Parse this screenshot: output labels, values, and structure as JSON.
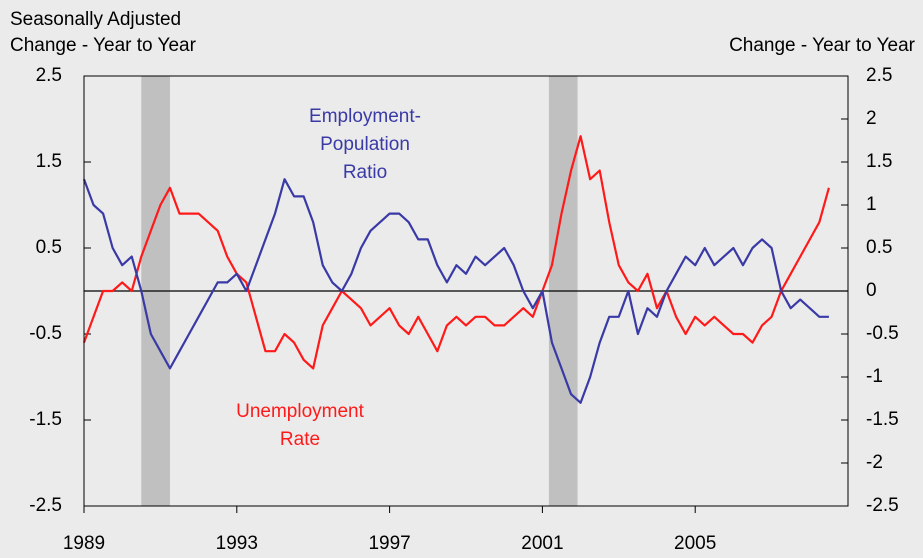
{
  "chart_data": {
    "type": "line",
    "left_axis_title": [
      "Seasonally Adjusted",
      "Change - Year to Year"
    ],
    "right_axis_title": "Change - Year to Year",
    "x": [
      1989,
      1989.25,
      1989.5,
      1989.75,
      1990,
      1990.25,
      1990.5,
      1990.75,
      1991,
      1991.25,
      1991.5,
      1991.75,
      1992,
      1992.25,
      1992.5,
      1992.75,
      1993,
      1993.25,
      1993.5,
      1993.75,
      1994,
      1994.25,
      1994.5,
      1994.75,
      1995,
      1995.25,
      1995.5,
      1995.75,
      1996,
      1996.25,
      1996.5,
      1996.75,
      1997,
      1997.25,
      1997.5,
      1997.75,
      1998,
      1998.25,
      1998.5,
      1998.75,
      1999,
      1999.25,
      1999.5,
      1999.75,
      2000,
      2000.25,
      2000.5,
      2000.75,
      2001,
      2001.25,
      2001.5,
      2001.75,
      2002,
      2002.25,
      2002.5,
      2002.75,
      2003,
      2003.25,
      2003.5,
      2003.75,
      2004,
      2004.25,
      2004.5,
      2004.75,
      2005,
      2005.25,
      2005.5,
      2005.75,
      2006,
      2006.25,
      2006.5,
      2006.75,
      2007,
      2007.25,
      2007.5,
      2007.75,
      2008,
      2008.25,
      2008.5
    ],
    "series": [
      {
        "name": [
          "Unemployment",
          "Rate"
        ],
        "color": "#ff1a1a",
        "axis": "y",
        "values": [
          -0.6,
          -0.3,
          0.0,
          0.0,
          0.1,
          0.0,
          0.4,
          0.7,
          1.0,
          1.2,
          0.9,
          0.9,
          0.9,
          0.8,
          0.7,
          0.4,
          0.2,
          0.1,
          -0.3,
          -0.7,
          -0.7,
          -0.5,
          -0.6,
          -0.8,
          -0.9,
          -0.4,
          -0.2,
          0.0,
          -0.1,
          -0.2,
          -0.4,
          -0.3,
          -0.2,
          -0.4,
          -0.5,
          -0.3,
          -0.5,
          -0.7,
          -0.4,
          -0.3,
          -0.4,
          -0.3,
          -0.3,
          -0.4,
          -0.4,
          -0.3,
          -0.2,
          -0.3,
          0.0,
          0.3,
          0.9,
          1.4,
          1.8,
          1.3,
          1.4,
          0.8,
          0.3,
          0.1,
          0.0,
          0.2,
          -0.2,
          0.0,
          -0.3,
          -0.5,
          -0.3,
          -0.4,
          -0.3,
          -0.4,
          -0.5,
          -0.5,
          -0.6,
          -0.4,
          -0.3,
          0.0,
          0.2,
          0.4,
          0.6,
          0.8,
          1.2
        ]
      },
      {
        "name": [
          "Employment-",
          "Population",
          "Ratio"
        ],
        "color": "#3a3aa6",
        "axis": "y2",
        "values": [
          1.3,
          1.0,
          0.9,
          0.5,
          0.3,
          0.4,
          0.0,
          -0.5,
          -0.7,
          -0.9,
          -0.7,
          -0.5,
          -0.3,
          -0.1,
          0.1,
          0.1,
          0.2,
          0.0,
          0.3,
          0.6,
          0.9,
          1.3,
          1.1,
          1.1,
          0.8,
          0.3,
          0.1,
          0.0,
          0.2,
          0.5,
          0.7,
          0.8,
          0.9,
          0.9,
          0.8,
          0.6,
          0.6,
          0.3,
          0.1,
          0.3,
          0.2,
          0.4,
          0.3,
          0.4,
          0.5,
          0.3,
          0.0,
          -0.2,
          0.0,
          -0.6,
          -0.9,
          -1.2,
          -1.3,
          -1.0,
          -0.6,
          -0.3,
          -0.3,
          0.0,
          -0.5,
          -0.2,
          -0.3,
          0.0,
          0.2,
          0.4,
          0.3,
          0.5,
          0.3,
          0.4,
          0.5,
          0.3,
          0.5,
          0.6,
          0.5,
          0.0,
          -0.2,
          -0.1,
          -0.2,
          -0.3,
          -0.3
        ]
      }
    ],
    "shaded_periods": [
      [
        1990.5,
        1991.25
      ],
      [
        2001.17,
        2001.92
      ]
    ],
    "reference_line": 0,
    "xlim": [
      1989,
      2009
    ],
    "xticks": [
      1989,
      1993,
      1997,
      2001,
      2005
    ],
    "ylim": [
      -2.5,
      2.5
    ],
    "yticks": [
      2.5,
      1.5,
      0.5,
      -0.5,
      -1.5,
      -2.5
    ],
    "y2lim": [
      -2.5,
      2.5
    ],
    "y2ticks": [
      2.5,
      2,
      1.5,
      1,
      0.5,
      0,
      -0.5,
      -1,
      -1.5,
      -2,
      -2.5
    ]
  }
}
